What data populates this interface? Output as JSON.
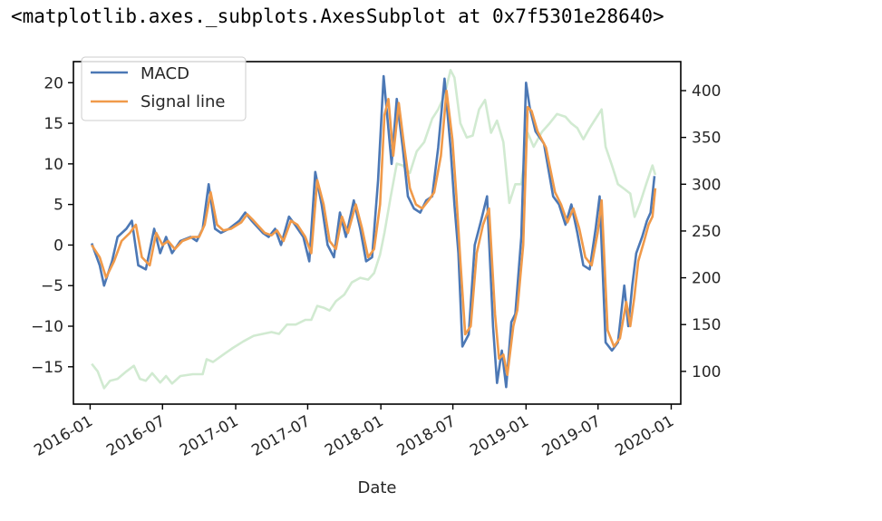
{
  "output_text": "<matplotlib.axes._subplots.AxesSubplot at 0x7f5301e28640>",
  "chart_data": {
    "type": "line",
    "title": "",
    "xlabel": "Date",
    "ylabel": "",
    "y2label": "",
    "xlim": [
      "2015-11-20",
      "2020-01-25"
    ],
    "ylim": [
      -19.6,
      22.6
    ],
    "y2lim": [
      65,
      431
    ],
    "x_ticks": [
      "2016-01",
      "2016-07",
      "2017-01",
      "2017-07",
      "2018-01",
      "2018-07",
      "2019-01",
      "2019-07",
      "2020-01"
    ],
    "y_ticks": [
      20,
      15,
      10,
      5,
      0,
      -5,
      -10,
      -15
    ],
    "y2_ticks": [
      400,
      350,
      300,
      250,
      200,
      150,
      100
    ],
    "grid": false,
    "legend_position": "upper left",
    "series": [
      {
        "name": "MACD",
        "axis": "left",
        "color": "#4c78b5",
        "points": [
          [
            "2016-01-05",
            0.2
          ],
          [
            "2016-01-25",
            -2.5
          ],
          [
            "2016-02-05",
            -5.0
          ],
          [
            "2016-02-25",
            -2.0
          ],
          [
            "2016-03-10",
            1.0
          ],
          [
            "2016-04-01",
            2.0
          ],
          [
            "2016-04-15",
            3.0
          ],
          [
            "2016-05-01",
            -2.5
          ],
          [
            "2016-05-20",
            -3.0
          ],
          [
            "2016-06-10",
            2.0
          ],
          [
            "2016-06-25",
            -1.0
          ],
          [
            "2016-07-10",
            1.0
          ],
          [
            "2016-07-25",
            -1.0
          ],
          [
            "2016-08-15",
            0.5
          ],
          [
            "2016-09-10",
            1.0
          ],
          [
            "2016-09-25",
            0.5
          ],
          [
            "2016-10-10",
            2.0
          ],
          [
            "2016-10-25",
            7.5
          ],
          [
            "2016-11-10",
            2.0
          ],
          [
            "2016-11-25",
            1.5
          ],
          [
            "2016-12-15",
            2.0
          ],
          [
            "2017-01-10",
            3.0
          ],
          [
            "2017-01-25",
            4.0
          ],
          [
            "2017-02-10",
            3.0
          ],
          [
            "2017-03-10",
            1.5
          ],
          [
            "2017-03-25",
            1.0
          ],
          [
            "2017-04-10",
            2.0
          ],
          [
            "2017-04-25",
            0.0
          ],
          [
            "2017-05-15",
            3.5
          ],
          [
            "2017-05-30",
            2.5
          ],
          [
            "2017-06-20",
            1.0
          ],
          [
            "2017-07-05",
            -2.0
          ],
          [
            "2017-07-20",
            9.0
          ],
          [
            "2017-08-05",
            5.0
          ],
          [
            "2017-08-20",
            0.0
          ],
          [
            "2017-09-05",
            -1.5
          ],
          [
            "2017-09-20",
            4.0
          ],
          [
            "2017-10-05",
            1.0
          ],
          [
            "2017-10-25",
            5.5
          ],
          [
            "2017-11-10",
            2.0
          ],
          [
            "2017-11-25",
            -2.0
          ],
          [
            "2017-12-10",
            -1.5
          ],
          [
            "2017-12-25",
            8.0
          ],
          [
            "2018-01-08",
            20.8
          ],
          [
            "2018-01-15",
            17.0
          ],
          [
            "2018-01-28",
            10.0
          ],
          [
            "2018-02-10",
            18.0
          ],
          [
            "2018-02-25",
            12.0
          ],
          [
            "2018-03-10",
            6.0
          ],
          [
            "2018-03-25",
            4.5
          ],
          [
            "2018-04-10",
            4.0
          ],
          [
            "2018-04-25",
            5.5
          ],
          [
            "2018-05-10",
            6.0
          ],
          [
            "2018-05-25",
            12.0
          ],
          [
            "2018-06-10",
            20.5
          ],
          [
            "2018-06-25",
            12.0
          ],
          [
            "2018-07-05",
            5.0
          ],
          [
            "2018-07-15",
            -1.0
          ],
          [
            "2018-07-25",
            -12.5
          ],
          [
            "2018-08-10",
            -11.0
          ],
          [
            "2018-08-25",
            0.0
          ],
          [
            "2018-09-10",
            3.0
          ],
          [
            "2018-09-25",
            6.0
          ],
          [
            "2018-10-10",
            -10.0
          ],
          [
            "2018-10-20",
            -17.0
          ],
          [
            "2018-11-01",
            -13.0
          ],
          [
            "2018-11-12",
            -17.5
          ],
          [
            "2018-11-25",
            -9.5
          ],
          [
            "2018-12-05",
            -8.5
          ],
          [
            "2018-12-20",
            1.0
          ],
          [
            "2019-01-01",
            20.0
          ],
          [
            "2019-01-10",
            17.0
          ],
          [
            "2019-01-25",
            14.0
          ],
          [
            "2019-02-15",
            12.5
          ],
          [
            "2019-03-10",
            6.0
          ],
          [
            "2019-03-25",
            5.0
          ],
          [
            "2019-04-10",
            2.5
          ],
          [
            "2019-04-25",
            5.0
          ],
          [
            "2019-05-10",
            1.5
          ],
          [
            "2019-05-25",
            -2.5
          ],
          [
            "2019-06-10",
            -3.0
          ],
          [
            "2019-06-25",
            2.0
          ],
          [
            "2019-07-05",
            6.0
          ],
          [
            "2019-07-20",
            -12.0
          ],
          [
            "2019-08-05",
            -13.0
          ],
          [
            "2019-08-20",
            -12.0
          ],
          [
            "2019-09-05",
            -5.0
          ],
          [
            "2019-09-15",
            -10.0
          ],
          [
            "2019-09-25",
            -5.0
          ],
          [
            "2019-10-05",
            -1.0
          ],
          [
            "2019-10-20",
            1.0
          ],
          [
            "2019-11-01",
            3.0
          ],
          [
            "2019-11-10",
            4.0
          ],
          [
            "2019-11-20",
            8.5
          ]
        ]
      },
      {
        "name": "Signal line",
        "axis": "left",
        "color": "#f09a4a",
        "points": [
          [
            "2016-01-05",
            0.0
          ],
          [
            "2016-01-25",
            -1.5
          ],
          [
            "2016-02-10",
            -4.0
          ],
          [
            "2016-03-01",
            -2.0
          ],
          [
            "2016-03-20",
            0.5
          ],
          [
            "2016-04-10",
            1.5
          ],
          [
            "2016-04-25",
            2.5
          ],
          [
            "2016-05-10",
            -1.5
          ],
          [
            "2016-05-30",
            -2.5
          ],
          [
            "2016-06-15",
            1.5
          ],
          [
            "2016-07-01",
            0.0
          ],
          [
            "2016-07-15",
            0.5
          ],
          [
            "2016-08-01",
            -0.5
          ],
          [
            "2016-08-20",
            0.5
          ],
          [
            "2016-09-15",
            1.0
          ],
          [
            "2016-10-01",
            1.0
          ],
          [
            "2016-10-15",
            2.5
          ],
          [
            "2016-10-30",
            6.5
          ],
          [
            "2016-11-15",
            2.5
          ],
          [
            "2016-12-01",
            1.8
          ],
          [
            "2016-12-20",
            2.0
          ],
          [
            "2017-01-15",
            2.8
          ],
          [
            "2017-01-30",
            3.8
          ],
          [
            "2017-02-15",
            3.0
          ],
          [
            "2017-03-15",
            1.5
          ],
          [
            "2017-04-01",
            1.2
          ],
          [
            "2017-04-15",
            1.8
          ],
          [
            "2017-05-01",
            0.5
          ],
          [
            "2017-05-20",
            3.0
          ],
          [
            "2017-06-05",
            2.5
          ],
          [
            "2017-06-25",
            1.0
          ],
          [
            "2017-07-10",
            -1.0
          ],
          [
            "2017-07-25",
            8.0
          ],
          [
            "2017-08-10",
            5.0
          ],
          [
            "2017-08-25",
            0.5
          ],
          [
            "2017-09-10",
            -0.5
          ],
          [
            "2017-09-25",
            3.5
          ],
          [
            "2017-10-10",
            1.5
          ],
          [
            "2017-10-30",
            5.0
          ],
          [
            "2017-11-15",
            2.0
          ],
          [
            "2017-11-30",
            -1.5
          ],
          [
            "2017-12-15",
            -0.5
          ],
          [
            "2017-12-30",
            5.0
          ],
          [
            "2018-01-10",
            16.0
          ],
          [
            "2018-01-20",
            18.0
          ],
          [
            "2018-02-01",
            11.0
          ],
          [
            "2018-02-15",
            17.5
          ],
          [
            "2018-03-01",
            12.0
          ],
          [
            "2018-03-15",
            7.0
          ],
          [
            "2018-03-30",
            5.0
          ],
          [
            "2018-04-15",
            4.5
          ],
          [
            "2018-05-01",
            5.5
          ],
          [
            "2018-05-15",
            6.5
          ],
          [
            "2018-06-01",
            11.0
          ],
          [
            "2018-06-15",
            19.0
          ],
          [
            "2018-06-30",
            13.0
          ],
          [
            "2018-07-10",
            6.0
          ],
          [
            "2018-07-20",
            -2.0
          ],
          [
            "2018-08-01",
            -11.0
          ],
          [
            "2018-08-15",
            -10.0
          ],
          [
            "2018-08-30",
            -1.0
          ],
          [
            "2018-09-15",
            2.5
          ],
          [
            "2018-09-30",
            4.5
          ],
          [
            "2018-10-15",
            -8.5
          ],
          [
            "2018-10-25",
            -14.0
          ],
          [
            "2018-11-05",
            -13.5
          ],
          [
            "2018-11-15",
            -16.0
          ],
          [
            "2018-11-30",
            -10.0
          ],
          [
            "2018-12-10",
            -8.0
          ],
          [
            "2018-12-25",
            0.0
          ],
          [
            "2019-01-05",
            17.0
          ],
          [
            "2019-01-15",
            16.5
          ],
          [
            "2019-01-30",
            14.0
          ],
          [
            "2019-02-20",
            12.0
          ],
          [
            "2019-03-15",
            6.5
          ],
          [
            "2019-03-30",
            5.0
          ],
          [
            "2019-04-15",
            2.8
          ],
          [
            "2019-04-30",
            4.5
          ],
          [
            "2019-05-15",
            2.0
          ],
          [
            "2019-05-30",
            -1.5
          ],
          [
            "2019-06-15",
            -2.5
          ],
          [
            "2019-06-30",
            1.5
          ],
          [
            "2019-07-10",
            5.5
          ],
          [
            "2019-07-25",
            -10.5
          ],
          [
            "2019-08-10",
            -12.5
          ],
          [
            "2019-08-25",
            -11.5
          ],
          [
            "2019-09-10",
            -7.0
          ],
          [
            "2019-09-20",
            -10.0
          ],
          [
            "2019-09-30",
            -6.5
          ],
          [
            "2019-10-10",
            -2.0
          ],
          [
            "2019-10-25",
            0.5
          ],
          [
            "2019-11-05",
            2.5
          ],
          [
            "2019-11-15",
            3.5
          ],
          [
            "2019-11-22",
            7.0
          ]
        ]
      },
      {
        "name": "",
        "axis": "right",
        "color": "#2ca02c",
        "opacity": 0.22,
        "points": [
          [
            "2016-01-05",
            108
          ],
          [
            "2016-01-20",
            100
          ],
          [
            "2016-02-05",
            82
          ],
          [
            "2016-02-20",
            90
          ],
          [
            "2016-03-10",
            92
          ],
          [
            "2016-04-01",
            100
          ],
          [
            "2016-04-20",
            106
          ],
          [
            "2016-05-05",
            92
          ],
          [
            "2016-05-20",
            90
          ],
          [
            "2016-06-05",
            98
          ],
          [
            "2016-06-25",
            88
          ],
          [
            "2016-07-10",
            95
          ],
          [
            "2016-07-25",
            87
          ],
          [
            "2016-08-15",
            95
          ],
          [
            "2016-09-15",
            97
          ],
          [
            "2016-10-10",
            97
          ],
          [
            "2016-10-20",
            113
          ],
          [
            "2016-11-05",
            110
          ],
          [
            "2016-12-01",
            118
          ],
          [
            "2016-12-25",
            125
          ],
          [
            "2017-01-20",
            132
          ],
          [
            "2017-02-15",
            138
          ],
          [
            "2017-03-10",
            140
          ],
          [
            "2017-04-01",
            142
          ],
          [
            "2017-04-20",
            140
          ],
          [
            "2017-05-10",
            150
          ],
          [
            "2017-06-01",
            150
          ],
          [
            "2017-06-25",
            155
          ],
          [
            "2017-07-10",
            155
          ],
          [
            "2017-07-25",
            170
          ],
          [
            "2017-08-10",
            168
          ],
          [
            "2017-08-25",
            165
          ],
          [
            "2017-09-10",
            175
          ],
          [
            "2017-10-01",
            182
          ],
          [
            "2017-10-20",
            195
          ],
          [
            "2017-11-10",
            200
          ],
          [
            "2017-11-30",
            198
          ],
          [
            "2017-12-15",
            205
          ],
          [
            "2017-12-30",
            225
          ],
          [
            "2018-01-10",
            248
          ],
          [
            "2018-01-25",
            285
          ],
          [
            "2018-02-10",
            322
          ],
          [
            "2018-02-25",
            320
          ],
          [
            "2018-03-15",
            312
          ],
          [
            "2018-04-01",
            335
          ],
          [
            "2018-04-20",
            345
          ],
          [
            "2018-05-10",
            370
          ],
          [
            "2018-05-25",
            380
          ],
          [
            "2018-06-10",
            395
          ],
          [
            "2018-06-25",
            422
          ],
          [
            "2018-07-05",
            414
          ],
          [
            "2018-07-20",
            365
          ],
          [
            "2018-08-05",
            350
          ],
          [
            "2018-08-20",
            352
          ],
          [
            "2018-09-05",
            380
          ],
          [
            "2018-09-20",
            390
          ],
          [
            "2018-10-05",
            355
          ],
          [
            "2018-10-20",
            368
          ],
          [
            "2018-11-05",
            345
          ],
          [
            "2018-11-20",
            280
          ],
          [
            "2018-12-05",
            300
          ],
          [
            "2018-12-20",
            300
          ],
          [
            "2019-01-05",
            355
          ],
          [
            "2019-01-20",
            340
          ],
          [
            "2019-02-10",
            356
          ],
          [
            "2019-03-01",
            365
          ],
          [
            "2019-03-20",
            375
          ],
          [
            "2019-04-10",
            372
          ],
          [
            "2019-04-25",
            365
          ],
          [
            "2019-05-10",
            360
          ],
          [
            "2019-05-25",
            348
          ],
          [
            "2019-06-10",
            360
          ],
          [
            "2019-06-25",
            370
          ],
          [
            "2019-07-10",
            380
          ],
          [
            "2019-07-20",
            340
          ],
          [
            "2019-08-05",
            320
          ],
          [
            "2019-08-20",
            300
          ],
          [
            "2019-09-05",
            295
          ],
          [
            "2019-09-20",
            290
          ],
          [
            "2019-10-01",
            265
          ],
          [
            "2019-10-15",
            280
          ],
          [
            "2019-10-30",
            300
          ],
          [
            "2019-11-15",
            320
          ],
          [
            "2019-11-22",
            310
          ]
        ]
      }
    ]
  }
}
